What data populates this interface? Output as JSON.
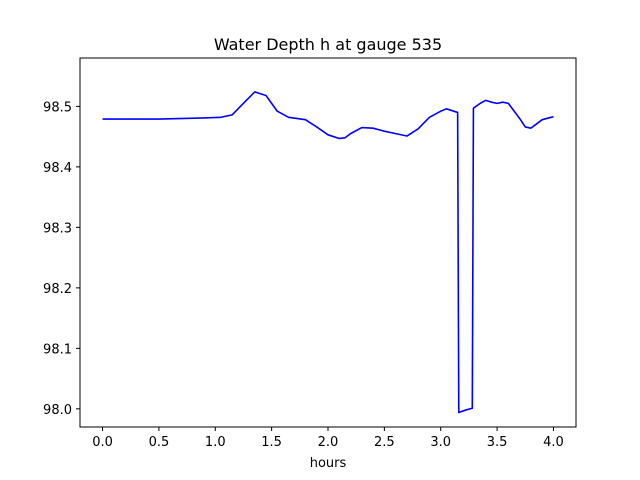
{
  "chart_data": {
    "type": "line",
    "title": "Water Depth h at gauge 535",
    "xlabel": "hours",
    "ylabel": "",
    "xlim": [
      -0.2,
      4.2
    ],
    "ylim": [
      97.97,
      98.58
    ],
    "xticks": [
      0.0,
      0.5,
      1.0,
      1.5,
      2.0,
      2.5,
      3.0,
      3.5,
      4.0
    ],
    "xtick_labels": [
      "0.0",
      "0.5",
      "1.0",
      "1.5",
      "2.0",
      "2.5",
      "3.0",
      "3.5",
      "4.0"
    ],
    "yticks": [
      98.0,
      98.1,
      98.2,
      98.3,
      98.4,
      98.5
    ],
    "ytick_labels": [
      "98.0",
      "98.1",
      "98.2",
      "98.3",
      "98.4",
      "98.5"
    ],
    "grid": false,
    "legend": "none",
    "line_color": "#0000ff",
    "series": [
      {
        "x": [
          0.0,
          0.5,
          0.9,
          1.05,
          1.15,
          1.25,
          1.35,
          1.45,
          1.55,
          1.65,
          1.8,
          1.9,
          2.0,
          2.1,
          2.15,
          2.2,
          2.3,
          2.4,
          2.5,
          2.6,
          2.7,
          2.8,
          2.9,
          3.0,
          3.05,
          3.15,
          3.16,
          3.22,
          3.28,
          3.29,
          3.35,
          3.4,
          3.45,
          3.5,
          3.55,
          3.6,
          3.7,
          3.75,
          3.8,
          3.9,
          4.0
        ],
        "y": [
          98.479,
          98.479,
          98.481,
          98.482,
          98.486,
          98.505,
          98.524,
          98.518,
          98.492,
          98.482,
          98.478,
          98.466,
          98.453,
          98.447,
          98.448,
          98.455,
          98.465,
          98.464,
          98.459,
          98.455,
          98.451,
          98.463,
          98.482,
          98.492,
          98.496,
          98.49,
          97.994,
          97.998,
          98.001,
          98.497,
          98.505,
          98.51,
          98.507,
          98.505,
          98.507,
          98.505,
          98.48,
          98.466,
          98.464,
          98.478,
          98.483
        ]
      }
    ]
  }
}
